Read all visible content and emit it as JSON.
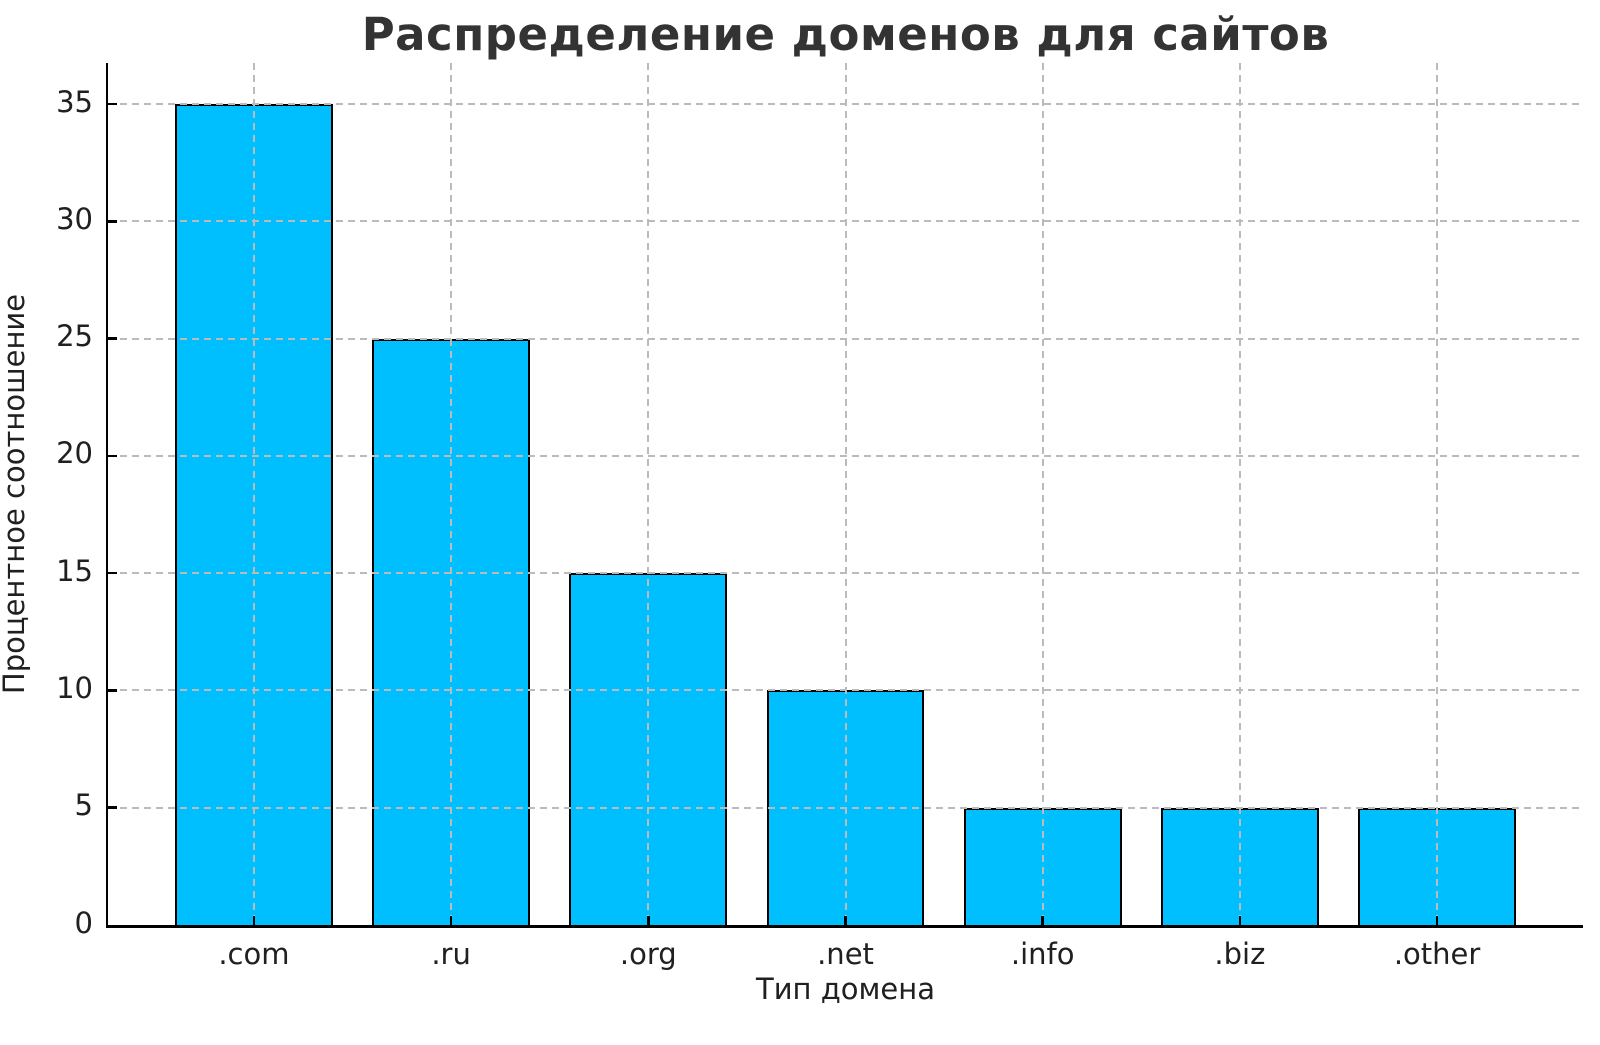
{
  "figure": {
    "background": "#ffffff"
  },
  "chart_data": {
    "type": "bar",
    "title": "Распределение доменов для сайтов",
    "xlabel": "Тип домена",
    "ylabel": "Процентное соотношение",
    "categories": [
      ".com",
      ".ru",
      ".org",
      ".net",
      ".info",
      ".biz",
      ".other"
    ],
    "values": [
      35,
      25,
      15,
      10,
      5,
      5,
      5
    ],
    "yticks": [
      0,
      5,
      10,
      15,
      20,
      25,
      30,
      35
    ],
    "ylim": [
      0,
      36.75
    ],
    "bar_width_fraction": 0.8,
    "grid": "dashed, horizontal and vertical, drawn above bars",
    "tick_direction": "in",
    "legend": "none",
    "colors": {
      "bar_fill": "#00BFFF",
      "bar_edge": "#000000",
      "grid_line": "#bbbbbb",
      "axis_line": "#000000",
      "title_text": "#333333",
      "tick_text": "#202020"
    }
  }
}
